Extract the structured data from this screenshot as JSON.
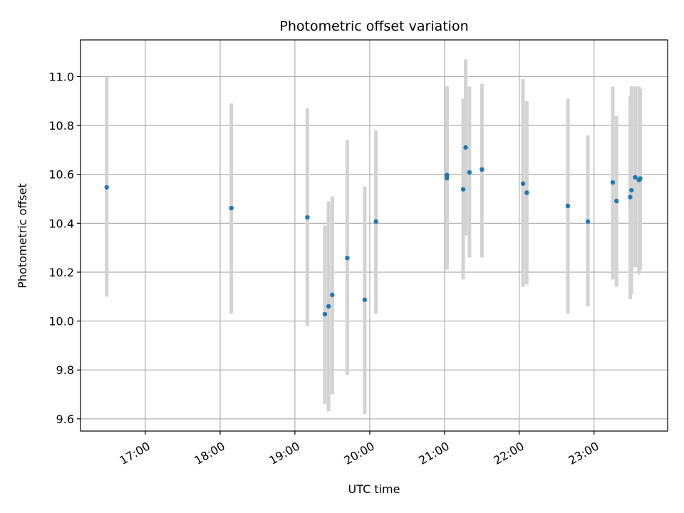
{
  "chart_data": {
    "type": "scatter",
    "title": "Photometric offset variation",
    "xlabel": "UTC time",
    "ylabel": "Photometric offset",
    "x_is_time": true,
    "x_unit": "hours UTC",
    "xlim": [
      "16:08",
      "23:59"
    ],
    "ylim": [
      9.55,
      11.15
    ],
    "xticks": [
      {
        "t": "17:00",
        "label": "17:00"
      },
      {
        "t": "18:00",
        "label": "18:00"
      },
      {
        "t": "19:00",
        "label": "19:00"
      },
      {
        "t": "20:00",
        "label": "20:00"
      },
      {
        "t": "21:00",
        "label": "21:00"
      },
      {
        "t": "22:00",
        "label": "22:00"
      },
      {
        "t": "23:00",
        "label": "23:00"
      }
    ],
    "yticks": [
      9.6,
      9.8,
      10.0,
      10.2,
      10.4,
      10.6,
      10.8,
      11.0
    ],
    "ytick_labels": [
      "9.6",
      "9.8",
      "10.0",
      "10.2",
      "10.4",
      "10.6",
      "10.8",
      "11.0"
    ],
    "grid": true,
    "colors": {
      "point": "#1f77b4",
      "errorbar": "#d3d3d3",
      "grid": "#b0b0b0"
    },
    "points": [
      {
        "t": "16:29",
        "y": 10.547,
        "lo": 10.1,
        "hi": 11.0
      },
      {
        "t": "18:09",
        "y": 10.462,
        "lo": 10.03,
        "hi": 10.89
      },
      {
        "t": "19:10",
        "y": 10.424,
        "lo": 9.98,
        "hi": 10.87
      },
      {
        "t": "19:24",
        "y": 10.028,
        "lo": 9.66,
        "hi": 10.39
      },
      {
        "t": "19:27",
        "y": 10.06,
        "lo": 9.63,
        "hi": 10.49
      },
      {
        "t": "19:30",
        "y": 10.107,
        "lo": 9.7,
        "hi": 10.51
      },
      {
        "t": "19:42",
        "y": 10.258,
        "lo": 9.78,
        "hi": 10.74
      },
      {
        "t": "19:56",
        "y": 10.087,
        "lo": 9.62,
        "hi": 10.55
      },
      {
        "t": "20:05",
        "y": 10.407,
        "lo": 10.03,
        "hi": 10.78
      },
      {
        "t": "21:02",
        "y": 10.585,
        "lo": 10.21,
        "hi": 10.96
      },
      {
        "t": "21:02",
        "y": 10.597,
        "lo": 10.23,
        "hi": 10.96
      },
      {
        "t": "21:15",
        "y": 10.539,
        "lo": 10.17,
        "hi": 10.91
      },
      {
        "t": "21:17",
        "y": 10.71,
        "lo": 10.35,
        "hi": 11.07
      },
      {
        "t": "21:20",
        "y": 10.608,
        "lo": 10.26,
        "hi": 10.96
      },
      {
        "t": "21:30",
        "y": 10.62,
        "lo": 10.26,
        "hi": 10.97
      },
      {
        "t": "22:03",
        "y": 10.562,
        "lo": 10.14,
        "hi": 10.99
      },
      {
        "t": "22:06",
        "y": 10.525,
        "lo": 10.15,
        "hi": 10.9
      },
      {
        "t": "22:39",
        "y": 10.471,
        "lo": 10.03,
        "hi": 10.91
      },
      {
        "t": "22:55",
        "y": 10.407,
        "lo": 10.06,
        "hi": 10.76
      },
      {
        "t": "23:15",
        "y": 10.567,
        "lo": 10.17,
        "hi": 10.96
      },
      {
        "t": "23:18",
        "y": 10.491,
        "lo": 10.14,
        "hi": 10.84
      },
      {
        "t": "23:29",
        "y": 10.507,
        "lo": 10.09,
        "hi": 10.92
      },
      {
        "t": "23:30",
        "y": 10.535,
        "lo": 10.11,
        "hi": 10.96
      },
      {
        "t": "23:33",
        "y": 10.588,
        "lo": 10.22,
        "hi": 10.96
      },
      {
        "t": "23:36",
        "y": 10.577,
        "lo": 10.19,
        "hi": 10.96
      },
      {
        "t": "23:37",
        "y": 10.583,
        "lo": 10.21,
        "hi": 10.95
      }
    ]
  }
}
